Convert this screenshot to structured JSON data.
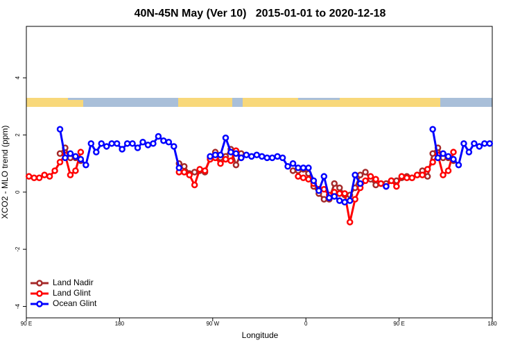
{
  "chart_data": {
    "type": "line",
    "title": "40N-45N May (Ver 10)   2015-01-01 to 2020-12-18",
    "x_label": "Longitude",
    "y_label": "XCO2 - MLO trend (ppm)",
    "xlim": [
      90,
      540
    ],
    "ylim": [
      -4.4,
      5.8
    ],
    "xticks": [
      {
        "value": 90,
        "label": "90 E"
      },
      {
        "value": 180,
        "label": "180"
      },
      {
        "value": 270,
        "label": "90 W"
      },
      {
        "value": 360,
        "label": "0"
      },
      {
        "value": 450,
        "label": "90 E"
      },
      {
        "value": 540,
        "label": "180"
      }
    ],
    "yticks": [
      -4,
      -2,
      0,
      2,
      4
    ],
    "legend": "bottom-left",
    "x": [
      92.5,
      97.5,
      102.5,
      107.5,
      112.5,
      117.5,
      122.5,
      127.5,
      132.5,
      137.5,
      142.5,
      147.5,
      152.5,
      157.5,
      162.5,
      167.5,
      172.5,
      177.5,
      182.5,
      187.5,
      192.5,
      197.5,
      202.5,
      207.5,
      212.5,
      217.5,
      222.5,
      227.5,
      232.5,
      237.5,
      242.5,
      247.5,
      252.5,
      257.5,
      262.5,
      267.5,
      272.5,
      277.5,
      282.5,
      287.5,
      292.5,
      297.5,
      302.5,
      307.5,
      312.5,
      317.5,
      322.5,
      327.5,
      332.5,
      337.5,
      342.5,
      347.5,
      352.5,
      357.5,
      362.5,
      367.5,
      372.5,
      377.5,
      382.5,
      387.5,
      392.5,
      397.5,
      402.5,
      407.5,
      412.5,
      417.5,
      422.5,
      427.5,
      432.5,
      437.5,
      442.5,
      447.5,
      452.5,
      457.5,
      462.5,
      467.5,
      472.5,
      477.5,
      482.5,
      487.5,
      492.5,
      497.5,
      502.5,
      507.5,
      512.5,
      517.5,
      522.5,
      527.5,
      532.5,
      537.5
    ],
    "series": [
      {
        "name": "Land Nadir",
        "color": "#a52a2a",
        "values": [
          null,
          null,
          null,
          null,
          null,
          null,
          1.35,
          1.55,
          1.2,
          1.2,
          1.1,
          null,
          null,
          null,
          null,
          null,
          null,
          null,
          null,
          null,
          null,
          null,
          null,
          null,
          null,
          null,
          null,
          null,
          null,
          1.0,
          0.9,
          0.65,
          0.7,
          0.75,
          0.7,
          1.2,
          1.4,
          1.2,
          1.25,
          1.5,
          0.95,
          1.35,
          null,
          null,
          null,
          null,
          null,
          null,
          null,
          null,
          null,
          0.75,
          0.75,
          0.8,
          0.65,
          0.2,
          -0.05,
          -0.25,
          -0.25,
          0.3,
          0.15,
          -0.1,
          -0.1,
          0.15,
          0.6,
          0.7,
          0.45,
          0.25,
          0.3,
          0.3,
          0.4,
          0.4,
          0.5,
          0.55,
          0.5,
          0.6,
          0.75,
          0.55,
          1.35,
          1.55,
          1.2,
          1.2,
          1.1,
          null,
          null,
          null,
          null,
          null,
          null,
          null
        ]
      },
      {
        "name": "Land Glint",
        "color": "#ff0000",
        "values": [
          0.55,
          0.5,
          0.5,
          0.6,
          0.55,
          0.75,
          1.05,
          1.3,
          0.6,
          0.75,
          1.4,
          null,
          null,
          null,
          null,
          null,
          null,
          null,
          null,
          null,
          null,
          null,
          null,
          null,
          null,
          null,
          null,
          null,
          null,
          0.7,
          0.7,
          0.6,
          0.25,
          0.8,
          0.75,
          1.15,
          1.2,
          1.0,
          1.15,
          1.1,
          1.45,
          1.2,
          null,
          null,
          null,
          null,
          null,
          null,
          null,
          null,
          null,
          null,
          0.55,
          0.5,
          0.45,
          0.3,
          0.1,
          0.1,
          -0.1,
          0.0,
          -0.05,
          -0.05,
          -1.05,
          -0.25,
          0.15,
          0.4,
          0.55,
          0.45,
          0.3,
          0.2,
          0.4,
          0.2,
          0.55,
          0.5,
          0.5,
          0.6,
          0.6,
          0.8,
          1.05,
          1.3,
          0.6,
          0.75,
          1.4,
          null,
          null,
          null,
          null,
          null,
          null,
          null
        ]
      },
      {
        "name": "Ocean Glint",
        "color": "#0000ff",
        "values": [
          null,
          null,
          null,
          null,
          null,
          null,
          2.2,
          1.2,
          1.35,
          1.25,
          1.15,
          0.95,
          1.7,
          1.4,
          1.7,
          1.6,
          1.7,
          1.7,
          1.5,
          1.7,
          1.7,
          1.55,
          1.75,
          1.65,
          1.7,
          1.95,
          1.8,
          1.75,
          1.6,
          0.85,
          null,
          null,
          null,
          null,
          null,
          1.25,
          1.3,
          1.3,
          1.9,
          1.4,
          1.35,
          1.2,
          1.3,
          1.25,
          1.3,
          1.25,
          1.2,
          1.2,
          1.25,
          1.2,
          0.9,
          1.0,
          0.85,
          0.85,
          0.85,
          0.4,
          0.05,
          0.55,
          -0.2,
          -0.15,
          -0.3,
          -0.35,
          -0.3,
          0.6,
          0.3,
          null,
          null,
          null,
          null,
          0.2,
          null,
          null,
          null,
          null,
          null,
          null,
          null,
          null,
          2.2,
          1.2,
          1.35,
          1.25,
          1.15,
          0.95,
          1.7,
          1.4,
          1.7,
          1.6,
          1.7,
          1.7
        ]
      }
    ]
  }
}
